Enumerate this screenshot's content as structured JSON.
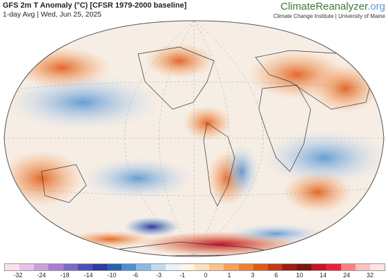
{
  "header": {
    "title": "GFS 2m T Anomaly (°C) [CFSR 1979-2000 baseline]",
    "subtitle": "1-day Avg | Wed, Jun 25, 2025",
    "brand_part1": "ClimateReanalyzer",
    "brand_part2": ".org",
    "institute": "Climate Change Institute | University of Maine"
  },
  "map": {
    "projection": "Winkel Tripel",
    "grid": true,
    "ocean_color": "#f4f4f8",
    "notable_features": [
      "warm anomalies over Europe and Eastern US",
      "strong warm anomaly over Antarctica coast",
      "cold anomaly off Antarctica near Ross Sea",
      "cool anomaly over South America"
    ]
  },
  "colorbar": {
    "tick_labels": [
      "-32",
      "-24",
      "-18",
      "-14",
      "-10",
      "-6",
      "-3",
      "-1",
      "0",
      "1",
      "3",
      "6",
      "10",
      "14",
      "24",
      "32"
    ],
    "colors": [
      "#fde0ef",
      "#e8c2e8",
      "#c9a2dd",
      "#a97fd0",
      "#7b6ac7",
      "#4d4fb8",
      "#2f3b9e",
      "#2a5fb0",
      "#4f8fd0",
      "#8bb8e6",
      "#c2dbf3",
      "#e9f2fb",
      "#fff5e8",
      "#fde0c2",
      "#fbc28e",
      "#f7a15a",
      "#ef7f2e",
      "#e05a16",
      "#c23a10",
      "#9c1e12",
      "#7a1410",
      "#c0182a",
      "#e8243c",
      "#ff8080",
      "#ffc0c0",
      "#ffe4e4"
    ]
  }
}
